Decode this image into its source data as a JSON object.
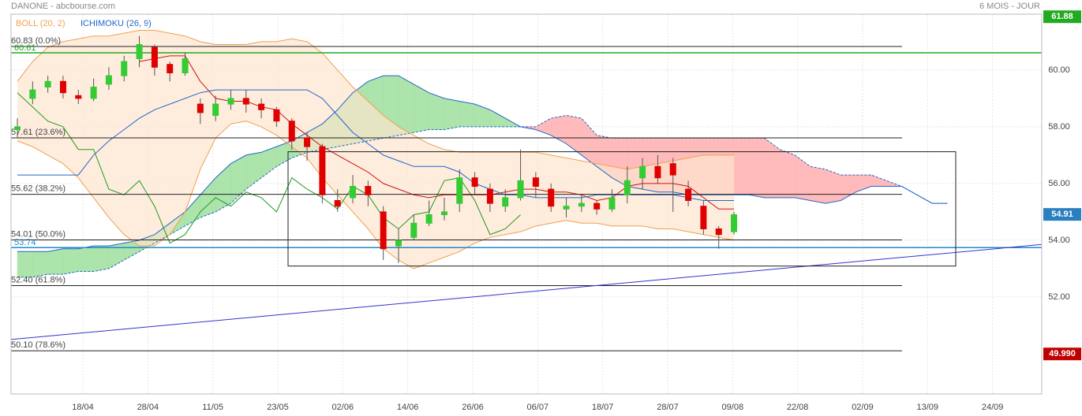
{
  "header": {
    "title": "DANONE - abcbourse.com",
    "period": "6 MOIS - JOUR",
    "indicators": [
      "BOLL (20, 2)",
      "ICHIMOKU (26, 9)"
    ]
  },
  "chart_data": {
    "type": "candlestick",
    "ylim": [
      48.58,
      61.97
    ],
    "yticks": [
      {
        "value": 52,
        "label": "52.00"
      },
      {
        "value": 54,
        "label": "54.00"
      },
      {
        "value": 56,
        "label": "56.00"
      },
      {
        "value": 58,
        "label": "58.00"
      },
      {
        "value": 60,
        "label": "60.00"
      }
    ],
    "xticks": [
      "18/04",
      "28/04",
      "11/05",
      "23/05",
      "02/06",
      "14/06",
      "26/06",
      "06/07",
      "18/07",
      "28/07",
      "09/08",
      "22/08",
      "02/09",
      "13/09",
      "24/09"
    ],
    "grid": true,
    "up_color": "#33cc33",
    "down_color": "#e00000",
    "candles": {
      "open": [
        57.9,
        59.0,
        59.4,
        59.6,
        59.1,
        59.0,
        59.5,
        59.8,
        60.4,
        60.8,
        60.2,
        59.9,
        58.8,
        58.4,
        58.8,
        59.0,
        58.8,
        58.6,
        58.2,
        57.6,
        57.3,
        55.4,
        55.5,
        55.9,
        55.0,
        53.8,
        54.1,
        54.6,
        54.9,
        55.3,
        56.2,
        55.8,
        55.2,
        55.5,
        56.2,
        55.8,
        55.1,
        55.2,
        55.3,
        55.1,
        55.6,
        56.2,
        56.6,
        56.7,
        55.8,
        55.2,
        54.4,
        54.3
      ],
      "high": [
        58.3,
        59.6,
        59.8,
        59.8,
        59.3,
        59.7,
        60.1,
        60.5,
        61.2,
        60.9,
        60.3,
        60.6,
        59.0,
        59.1,
        59.3,
        59.3,
        59.0,
        58.7,
        58.3,
        57.8,
        57.4,
        55.8,
        56.3,
        56.1,
        55.2,
        54.4,
        54.9,
        55.4,
        55.5,
        56.5,
        56.4,
        56.0,
        55.8,
        57.2,
        56.4,
        56.0,
        55.5,
        55.6,
        55.4,
        55.8,
        56.6,
        56.9,
        57.0,
        56.9,
        56.1,
        55.4,
        54.5,
        55.0
      ],
      "low": [
        57.6,
        58.8,
        59.2,
        59.0,
        58.8,
        58.9,
        59.3,
        59.6,
        60.1,
        59.8,
        59.6,
        59.8,
        58.1,
        58.2,
        58.6,
        58.5,
        58.3,
        58.0,
        57.2,
        56.8,
        55.3,
        55.0,
        55.3,
        55.2,
        53.3,
        53.2,
        54.0,
        54.5,
        54.7,
        55.0,
        55.6,
        55.0,
        55.0,
        55.4,
        55.5,
        55.0,
        54.8,
        55.0,
        54.9,
        55.0,
        55.3,
        55.8,
        56.0,
        55.0,
        55.2,
        54.2,
        53.7,
        54.2
      ],
      "close": [
        58.0,
        59.3,
        59.6,
        59.2,
        59.0,
        59.4,
        59.8,
        60.3,
        60.9,
        60.1,
        59.9,
        60.4,
        58.5,
        58.8,
        59.0,
        58.8,
        58.6,
        58.2,
        57.5,
        57.3,
        55.6,
        55.2,
        55.9,
        55.6,
        53.7,
        54.0,
        54.6,
        54.9,
        55.0,
        56.2,
        55.9,
        55.3,
        55.5,
        56.1,
        55.9,
        55.2,
        55.2,
        55.3,
        55.1,
        55.5,
        56.1,
        56.6,
        56.2,
        56.3,
        55.4,
        54.4,
        54.2,
        54.9
      ]
    },
    "bollinger": {
      "color": "#f0a050",
      "fill": "#fde6cf",
      "middle_color": "#cc1111",
      "upper": [
        59.6,
        60.3,
        60.8,
        61.0,
        61.1,
        61.2,
        61.2,
        61.3,
        61.4,
        61.4,
        61.3,
        61.2,
        61.0,
        60.9,
        60.9,
        60.9,
        61.0,
        61.0,
        61.1,
        61.0,
        60.6,
        60.0,
        59.4,
        58.9,
        58.4,
        58.0,
        57.7,
        57.4,
        57.2,
        57.1,
        57.1,
        57.1,
        57.1,
        57.1,
        57.1,
        57.0,
        56.9,
        56.8,
        56.7,
        56.6,
        56.5,
        56.6,
        56.7,
        56.8,
        56.9,
        57.0,
        57.0,
        57.0
      ],
      "middle": [
        null,
        null,
        null,
        null,
        null,
        null,
        null,
        null,
        60.3,
        60.4,
        60.5,
        60.5,
        59.6,
        59.0,
        58.9,
        58.9,
        58.7,
        58.6,
        58.1,
        57.7,
        57.3,
        57.0,
        56.7,
        56.4,
        56.0,
        55.8,
        55.6,
        55.5,
        55.6,
        55.6,
        55.6,
        55.6,
        55.7,
        55.8,
        55.8,
        55.7,
        55.7,
        55.6,
        55.4,
        55.5,
        55.9,
        56.0,
        56.0,
        56.0,
        55.9,
        55.5,
        55.1,
        55.1
      ],
      "lower": [
        57.5,
        57.3,
        57.0,
        56.7,
        56.2,
        55.5,
        54.8,
        54.2,
        53.8,
        53.8,
        54.2,
        55.0,
        56.5,
        57.6,
        58.1,
        58.2,
        58.0,
        57.7,
        57.3,
        56.9,
        56.2,
        55.6,
        55.0,
        54.4,
        53.7,
        53.3,
        53.0,
        53.2,
        53.4,
        53.6,
        53.9,
        54.1,
        54.2,
        54.3,
        54.5,
        54.6,
        54.7,
        54.6,
        54.6,
        54.5,
        54.5,
        54.5,
        54.4,
        54.4,
        54.3,
        54.2,
        54.1,
        54.0
      ]
    },
    "ichimoku": {
      "line_color": "#2266cc",
      "chikou_color": "#229922",
      "bull_fill": "#9ee09e",
      "bear_fill": "#ffb0b0",
      "kijun": [
        56.3,
        56.3,
        56.3,
        56.3,
        56.3,
        57.0,
        57.5,
        57.9,
        58.3,
        58.6,
        58.8,
        59.0,
        59.2,
        59.3,
        59.3,
        59.3,
        59.3,
        59.3,
        59.3,
        59.3,
        59.0,
        58.4,
        57.8,
        57.4,
        57.0,
        56.8,
        56.6,
        56.6,
        56.6,
        56.4,
        56.0,
        55.8,
        55.6,
        55.6,
        55.5,
        55.5,
        55.5,
        55.5,
        55.6,
        55.6,
        55.6,
        55.6,
        55.6,
        55.6,
        55.5,
        55.4,
        55.4,
        55.4
      ],
      "chikou": [
        59.2,
        58.7,
        58.2,
        58.0,
        57.2,
        57.2,
        55.8,
        55.6,
        56.1,
        55.2,
        53.9,
        54.2,
        55.0,
        55.5,
        55.2,
        55.7,
        55.5,
        55.0,
        56.2,
        55.8,
        55.5,
        55.1,
        55.9,
        55.6,
        54.8,
        54.4,
        54.9,
        55.0,
        56.1,
        56.2,
        55.4,
        54.2,
        54.4,
        54.9
      ],
      "span_a": [
        52.7,
        52.7,
        52.8,
        52.8,
        52.9,
        52.9,
        53.0,
        53.3,
        53.6,
        53.9,
        54.2,
        54.5,
        54.8,
        55.0,
        55.3,
        55.8,
        56.2,
        56.6,
        56.9,
        57.1,
        57.2,
        57.3,
        57.4,
        57.5,
        57.6,
        57.7,
        57.8,
        57.9,
        57.9,
        58.0,
        58.0,
        58.0,
        58.0,
        58.0,
        58.0,
        58.3,
        58.4,
        58.3,
        57.7,
        57.6,
        57.6,
        57.6,
        57.6,
        57.6,
        57.6,
        57.6,
        57.6,
        57.6,
        57.6,
        57.6,
        57.2,
        57.0,
        56.6,
        56.5,
        56.3,
        56.3,
        56.3,
        56.1,
        55.9,
        55.6,
        55.3,
        55.3
      ],
      "span_b": [
        53.6,
        53.6,
        53.6,
        53.7,
        53.7,
        53.8,
        53.8,
        53.9,
        54.0,
        54.2,
        54.6,
        55.0,
        55.6,
        56.2,
        56.7,
        57.0,
        57.1,
        57.3,
        57.5,
        57.8,
        58.1,
        58.6,
        59.2,
        59.6,
        59.8,
        59.8,
        59.5,
        59.2,
        59.0,
        58.9,
        58.8,
        58.6,
        58.3,
        58.0,
        57.9,
        57.7,
        57.4,
        57.0,
        56.6,
        56.2,
        55.9,
        55.8,
        55.7,
        55.7,
        55.6,
        55.6,
        55.6,
        55.6,
        55.6,
        55.5,
        55.5,
        55.5,
        55.4,
        55.3,
        55.4,
        55.7,
        55.9,
        55.9,
        55.9,
        55.6,
        55.3,
        55.3
      ]
    },
    "fibonacci": [
      {
        "value": 60.83,
        "label": "60.83 (0.0%)"
      },
      {
        "value": 57.61,
        "label": "57.61 (23.6%)"
      },
      {
        "value": 55.62,
        "label": "55.62 (38.2%)"
      },
      {
        "value": 54.01,
        "label": "54.01 (50.0%)"
      },
      {
        "value": 52.4,
        "label": "52.40 (61.8%)"
      },
      {
        "value": 50.1,
        "label": "50.10 (78.6%)"
      }
    ],
    "hlines": [
      {
        "value": 60.61,
        "label": "60.61",
        "color": "#22aa22"
      },
      {
        "value": 53.74,
        "label": "53.74",
        "color": "#2288cc"
      }
    ],
    "trendline": [
      50.5,
      53.85
    ],
    "trend_color": "#3333cc",
    "box": [
      57.12,
      53.09
    ],
    "markers": [
      {
        "value": 61.88,
        "label": "61.88",
        "color": "#22aa22"
      },
      {
        "value": 54.91,
        "label": "54.91",
        "color": "#2a7fc0"
      },
      {
        "value": 49.99,
        "label": "49.990",
        "color": "#c00000"
      }
    ]
  }
}
